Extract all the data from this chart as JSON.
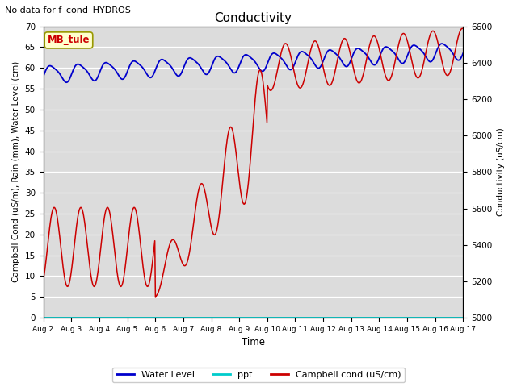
{
  "title": "Conductivity",
  "top_left_text": "No data for f_cond_HYDROS",
  "ylabel_left": "Campbell Cond (uS/m), Rain (mm), Water Level (cm)",
  "ylabel_right": "Conductivity (uS/cm)",
  "xlabel": "Time",
  "ylim_left": [
    0,
    70
  ],
  "ylim_right": [
    5000,
    6600
  ],
  "plot_bg_color": "#dcdcdc",
  "fig_bg_color": "#ffffff",
  "annotation_box": "MB_tule",
  "annotation_fg": "#cc0000",
  "annotation_bg": "#ffffcc",
  "annotation_edge": "#999900",
  "x_tick_labels": [
    "Aug 2",
    "Aug 3",
    "Aug 4",
    "Aug 5",
    "Aug 6",
    "Aug 7",
    "Aug 8",
    "Aug 9",
    "Aug 10",
    "Aug 11",
    "Aug 12",
    "Aug 13",
    "Aug 14",
    "Aug 15",
    "Aug 16",
    "Aug 17"
  ],
  "left_yticks": [
    0,
    5,
    10,
    15,
    20,
    25,
    30,
    35,
    40,
    45,
    50,
    55,
    60,
    65,
    70
  ],
  "right_yticks": [
    5000,
    5200,
    5400,
    5600,
    5800,
    6000,
    6200,
    6400,
    6600
  ],
  "legend_labels": [
    "Water Level",
    "ppt",
    "Campbell cond (uS/cm)"
  ],
  "legend_colors": [
    "#0000cc",
    "#00cccc",
    "#cc0000"
  ]
}
